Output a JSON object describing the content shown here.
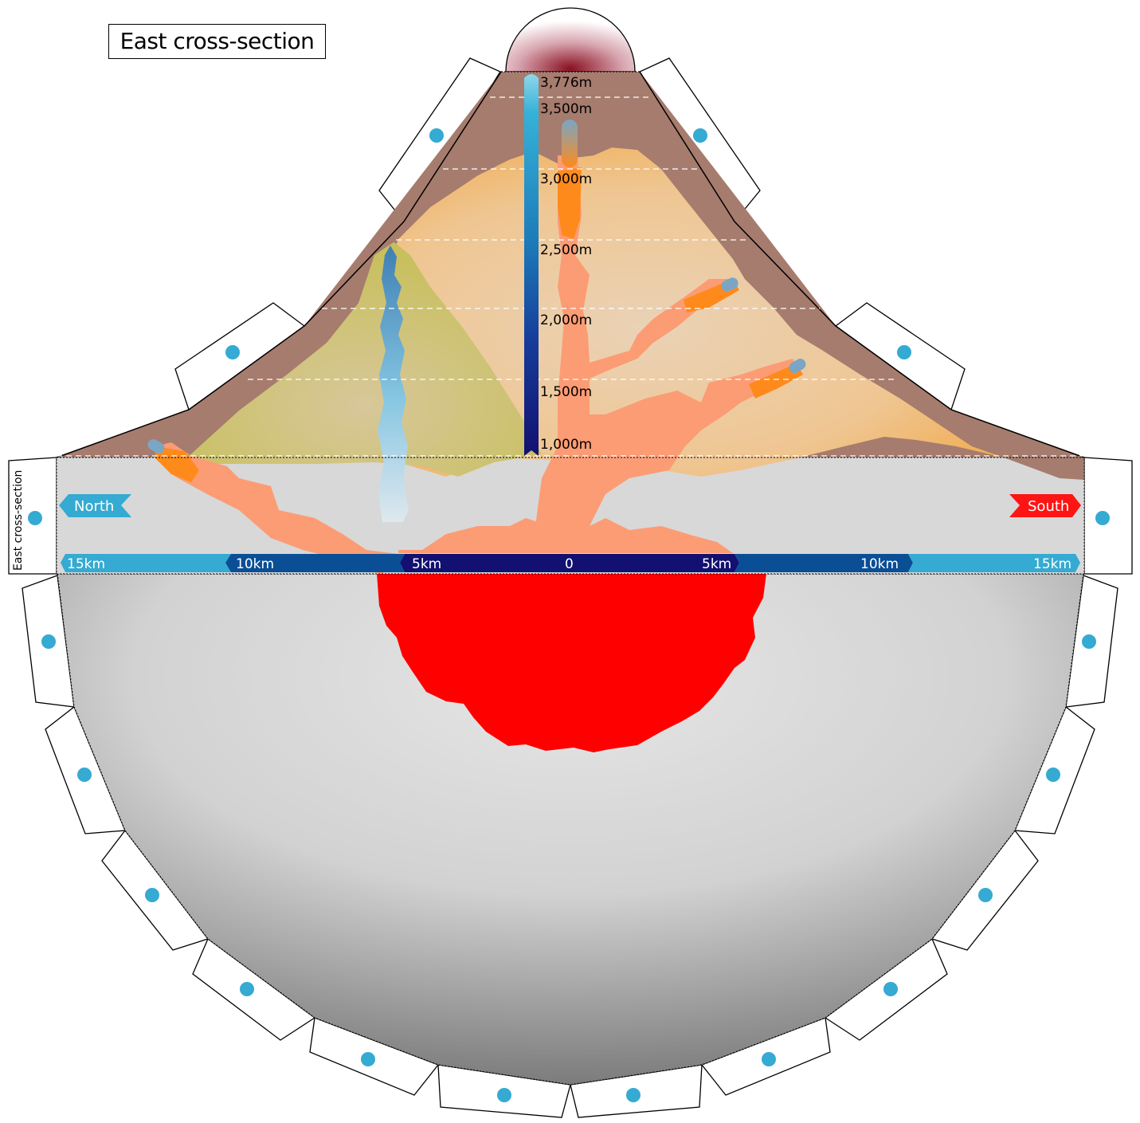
{
  "title": "East cross-section",
  "side_label": "East cross-section",
  "directions": {
    "left": "North",
    "right": "South"
  },
  "altitude_labels": [
    "3,776m",
    "3,500m",
    "3,000m",
    "2,500m",
    "2,000m",
    "1,500m",
    "1,000m"
  ],
  "distance_labels": [
    "15km",
    "10km",
    "5km",
    "0",
    "5km",
    "10km",
    "15km"
  ],
  "colors": {
    "outer_crust": "#a67c6e",
    "inner_cone": "#f0c896",
    "old_cone": "#c9c160",
    "magma_chamber": "#ff0000",
    "dike_bright": "#ff8a1c",
    "dike_pale": "#fc9c74",
    "north_marker": "#35aad2",
    "south_marker": "#ff1414",
    "scale_dark": "#121070",
    "scale_mid": "#0a4e96",
    "scale_light": "#35aad2",
    "glue_dot": "#35aad2"
  }
}
